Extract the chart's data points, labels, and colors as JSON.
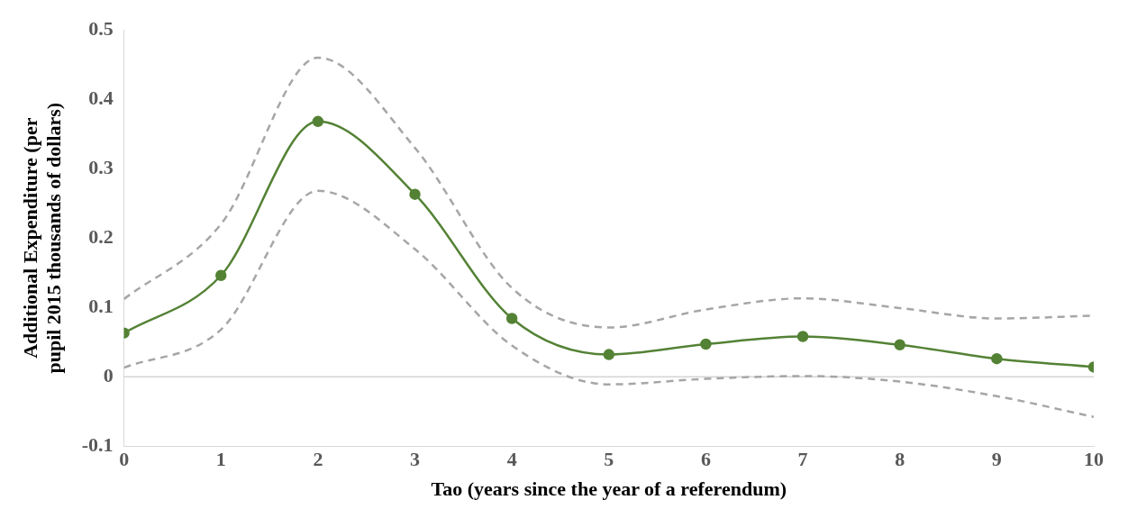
{
  "chart_data": {
    "type": "line",
    "xlabel": "Tao (years since the year of a referendum)",
    "ylabel": "Additional Expenditure (per pupil 2015 thousands of dollars)",
    "x": [
      0,
      1,
      2,
      3,
      4,
      5,
      6,
      7,
      8,
      9,
      10
    ],
    "series": [
      {
        "color": "#a6a6a6",
        "line_style": "dashed",
        "marker": "none",
        "values": [
          0.112,
          0.22,
          0.46,
          0.33,
          0.128,
          0.071,
          0.097,
          0.113,
          0.099,
          0.084,
          0.088
        ]
      },
      {
        "color": "#a6a6a6",
        "line_style": "dashed",
        "marker": "none",
        "values": [
          0.013,
          0.068,
          0.268,
          0.184,
          0.045,
          -0.011,
          -0.003,
          0.001,
          -0.007,
          -0.028,
          -0.058
        ]
      },
      {
        "color": "#548235",
        "values": [
          0.063,
          0.146,
          0.368,
          0.263,
          0.084,
          0.032,
          0.047,
          0.058,
          0.046,
          0.026,
          0.014
        ]
      }
    ],
    "xlim": [
      0,
      10
    ],
    "xticks": [
      0,
      1,
      2,
      3,
      4,
      5,
      6,
      7,
      8,
      9,
      10
    ],
    "ylim": [
      -0.1,
      0.5
    ],
    "yticks": [
      -0.1,
      0,
      0.1,
      0.2,
      0.3,
      0.4,
      0.5
    ],
    "ref_lines": [
      {
        "axis": "y",
        "value": 0,
        "color": "#bfbfbf"
      }
    ],
    "grid": false,
    "legend": false,
    "marker": "circle",
    "line_style": "solid"
  }
}
